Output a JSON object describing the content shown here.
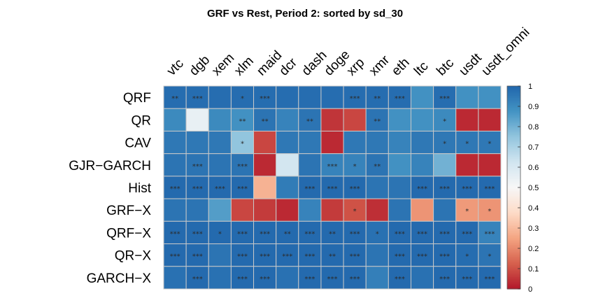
{
  "chart_data": {
    "type": "heatmap",
    "title": "GRF vs Rest,  Period 2: sorted by sd_30",
    "columns": [
      "vtc",
      "dgb",
      "xem",
      "xlm",
      "maid",
      "dcr",
      "dash",
      "doge",
      "xrp",
      "xmr",
      "eth",
      "ltc",
      "btc",
      "usdt",
      "usdt_omni"
    ],
    "rows": [
      "QRF",
      "QR",
      "CAV",
      "GJR−GARCH",
      "Hist",
      "GRF−X",
      "QRF−X",
      "QR−X",
      "GARCH−X"
    ],
    "values": [
      [
        0.98,
        0.98,
        0.98,
        0.98,
        0.98,
        0.98,
        0.98,
        0.98,
        0.98,
        0.98,
        0.98,
        0.88,
        0.98,
        0.88,
        0.88
      ],
      [
        0.9,
        0.55,
        0.9,
        0.88,
        0.96,
        0.92,
        0.96,
        0.05,
        0.08,
        0.96,
        0.88,
        0.88,
        0.9,
        0.03,
        0.03
      ],
      [
        0.95,
        0.95,
        0.95,
        0.75,
        0.08,
        0.95,
        0.95,
        0.03,
        0.95,
        0.95,
        0.92,
        0.95,
        0.95,
        0.95,
        0.95
      ],
      [
        0.96,
        0.96,
        0.96,
        0.96,
        0.03,
        0.62,
        0.96,
        0.92,
        0.92,
        0.96,
        0.88,
        0.92,
        0.8,
        0.03,
        0.03
      ],
      [
        0.99,
        0.99,
        0.99,
        0.99,
        0.28,
        0.94,
        0.99,
        0.99,
        0.99,
        0.96,
        0.96,
        0.99,
        0.99,
        0.99,
        0.99
      ],
      [
        0.96,
        0.96,
        0.85,
        0.08,
        0.06,
        0.03,
        0.92,
        0.06,
        0.1,
        0.04,
        0.96,
        0.22,
        0.96,
        0.23,
        0.22
      ],
      [
        0.99,
        0.99,
        0.99,
        0.99,
        0.99,
        0.99,
        0.99,
        0.99,
        0.99,
        0.97,
        0.99,
        0.99,
        0.99,
        0.99,
        0.92
      ],
      [
        0.99,
        0.99,
        0.96,
        0.99,
        0.99,
        0.99,
        0.99,
        0.99,
        0.99,
        0.96,
        0.99,
        0.99,
        0.99,
        0.98,
        0.96
      ],
      [
        0.97,
        0.99,
        0.97,
        0.99,
        0.99,
        0.97,
        0.99,
        0.99,
        0.99,
        0.93,
        0.99,
        0.97,
        0.99,
        0.99,
        0.99
      ]
    ],
    "significance": [
      [
        "**",
        "***",
        "",
        "*",
        "***",
        "",
        "",
        "",
        "***",
        "**",
        "***",
        "",
        "***",
        "",
        ""
      ],
      [
        "",
        "",
        "",
        "**",
        "**",
        "",
        "**",
        "",
        "",
        "**",
        "",
        "",
        "*",
        "",
        ""
      ],
      [
        "",
        "",
        "",
        "*",
        "",
        "",
        "",
        "",
        "",
        "",
        "",
        "",
        "*",
        "*",
        "*"
      ],
      [
        "",
        "***",
        "",
        "***",
        "",
        "",
        "",
        "***",
        "*",
        "**",
        "",
        "",
        "",
        "",
        ""
      ],
      [
        "***",
        "***",
        "***",
        "***",
        "",
        "",
        "***",
        "***",
        "***",
        "",
        "",
        "***",
        "***",
        "***",
        "***"
      ],
      [
        "",
        "",
        "",
        "",
        "",
        "",
        "",
        "",
        "*",
        "",
        "",
        "",
        "",
        "*",
        "*"
      ],
      [
        "***",
        "***",
        "*",
        "***",
        "***",
        "**",
        "***",
        "**",
        "***",
        "*",
        "***",
        "***",
        "***",
        "***",
        "***"
      ],
      [
        "***",
        "***",
        "",
        "***",
        "***",
        "***",
        "***",
        "**",
        "***",
        "",
        "***",
        "***",
        "***",
        "*",
        "*"
      ],
      [
        "",
        "***",
        "",
        "***",
        "***",
        "",
        "***",
        "***",
        "***",
        "",
        "***",
        "",
        "***",
        "***",
        "***"
      ]
    ],
    "colorbar": {
      "ticks": [
        0,
        0.1,
        0.2,
        0.3,
        0.4,
        0.5,
        0.6,
        0.7,
        0.8,
        0.9,
        1
      ],
      "tick_labels": [
        "0",
        "0.1",
        "0.2",
        "0.3",
        "0.4",
        "0.5",
        "0.6",
        "0.7",
        "0.8",
        "0.9",
        "1"
      ],
      "range": [
        0,
        1
      ],
      "palette": [
        "#B2182B",
        "#D6604D",
        "#F4A582",
        "#FDDBC7",
        "#F7F7F7",
        "#D1E5F0",
        "#92C5DE",
        "#4393C3",
        "#2166AC"
      ]
    },
    "grid_color": "#c8c8c8",
    "legend": "right"
  }
}
